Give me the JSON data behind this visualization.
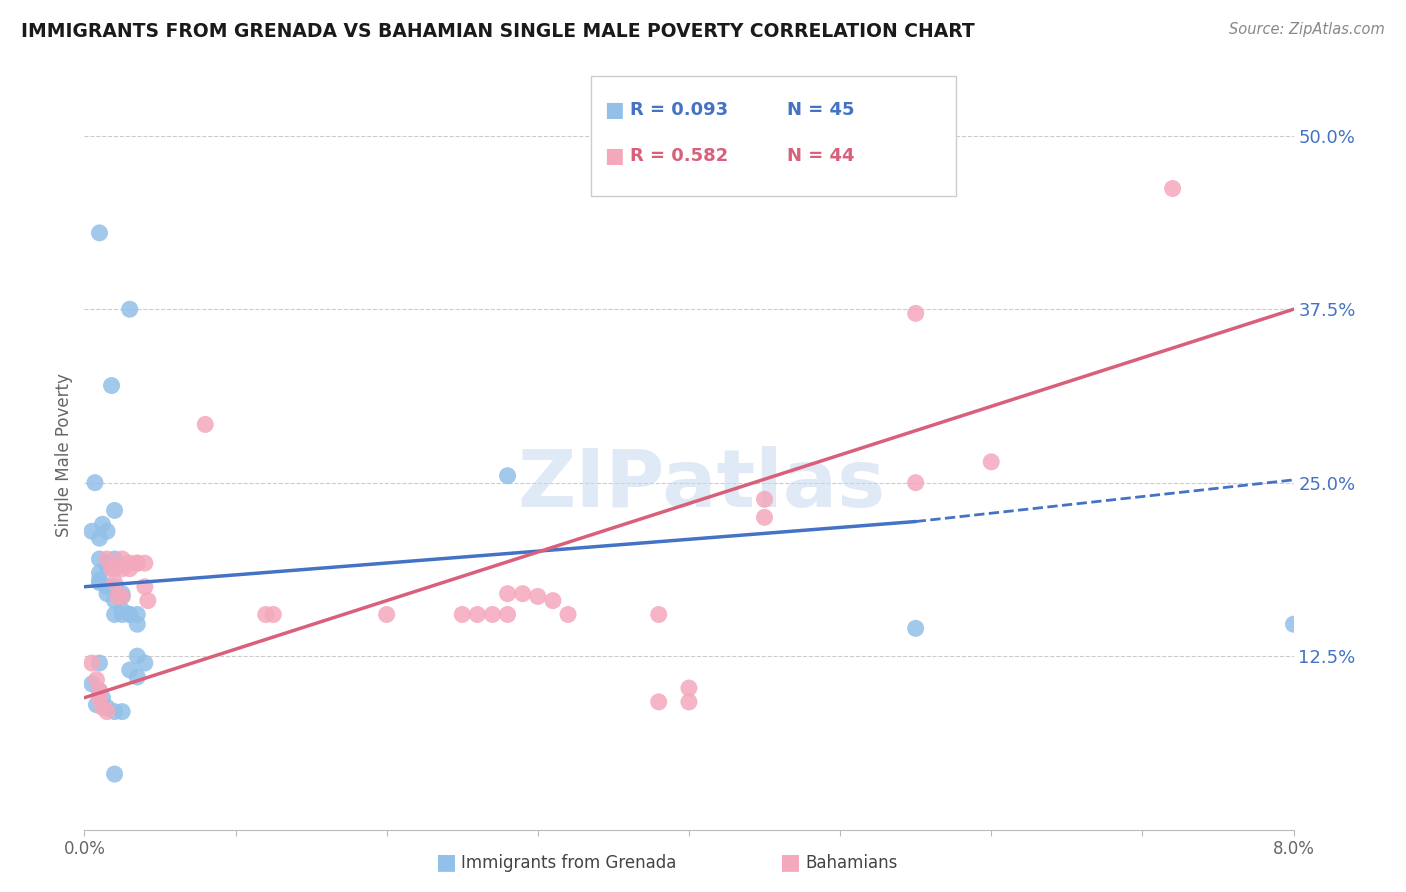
{
  "title": "IMMIGRANTS FROM GRENADA VS BAHAMIAN SINGLE MALE POVERTY CORRELATION CHART",
  "source": "Source: ZipAtlas.com",
  "ylabel": "Single Male Poverty",
  "xlim": [
    0.0,
    0.08
  ],
  "ylim": [
    0.0,
    0.54
  ],
  "ytick_vals": [
    0.125,
    0.25,
    0.375,
    0.5
  ],
  "ytick_labels": [
    "12.5%",
    "25.0%",
    "37.5%",
    "50.0%"
  ],
  "xtick_vals": [
    0.0,
    0.01,
    0.02,
    0.03,
    0.04,
    0.05,
    0.06,
    0.07,
    0.08
  ],
  "xtick_labels": [
    "0.0%",
    "",
    "",
    "",
    "",
    "",
    "",
    "",
    "8.0%"
  ],
  "legend_r1": "R = 0.093",
  "legend_n1": "N = 45",
  "legend_r2": "R = 0.582",
  "legend_n2": "N = 44",
  "blue_scatter_color": "#92C0E8",
  "pink_scatter_color": "#F4A8BC",
  "blue_line_color": "#4472C4",
  "pink_line_color": "#D9607A",
  "background_color": "#FFFFFF",
  "grid_color": "#CCCCCC",
  "watermark": "ZIPatlas",
  "blue_line_x0": 0.0,
  "blue_line_y0": 0.175,
  "blue_line_x1": 0.055,
  "blue_line_y1": 0.222,
  "blue_line_x2": 0.08,
  "blue_line_y2": 0.252,
  "pink_line_x0": 0.0,
  "pink_line_y0": 0.095,
  "pink_line_x1": 0.08,
  "pink_line_y1": 0.375,
  "blue_x": [
    0.001,
    0.003,
    0.0018,
    0.0007,
    0.0005,
    0.001,
    0.0015,
    0.0012,
    0.002,
    0.001,
    0.0015,
    0.001,
    0.001,
    0.001,
    0.0015,
    0.002,
    0.0015,
    0.0015,
    0.002,
    0.002,
    0.0025,
    0.0025,
    0.002,
    0.0025,
    0.0025,
    0.003,
    0.003,
    0.0035,
    0.0035,
    0.0035,
    0.004,
    0.003,
    0.0035,
    0.028,
    0.055,
    0.001,
    0.08,
    0.0005,
    0.001,
    0.0012,
    0.0008,
    0.0015,
    0.002,
    0.0025,
    0.002
  ],
  "blue_y": [
    0.43,
    0.375,
    0.32,
    0.25,
    0.215,
    0.21,
    0.215,
    0.22,
    0.23,
    0.195,
    0.19,
    0.185,
    0.18,
    0.178,
    0.192,
    0.195,
    0.175,
    0.17,
    0.175,
    0.165,
    0.17,
    0.168,
    0.155,
    0.158,
    0.155,
    0.155,
    0.155,
    0.155,
    0.148,
    0.125,
    0.12,
    0.115,
    0.11,
    0.255,
    0.145,
    0.12,
    0.148,
    0.105,
    0.1,
    0.095,
    0.09,
    0.088,
    0.085,
    0.085,
    0.04
  ],
  "pink_x": [
    0.0005,
    0.0008,
    0.001,
    0.001,
    0.0012,
    0.0015,
    0.0015,
    0.0018,
    0.002,
    0.002,
    0.0022,
    0.0025,
    0.0025,
    0.0025,
    0.003,
    0.003,
    0.0035,
    0.0035,
    0.004,
    0.004,
    0.0042,
    0.008,
    0.012,
    0.0125,
    0.02,
    0.025,
    0.026,
    0.027,
    0.028,
    0.028,
    0.029,
    0.03,
    0.031,
    0.032,
    0.038,
    0.038,
    0.04,
    0.04,
    0.045,
    0.045,
    0.055,
    0.055,
    0.06,
    0.072
  ],
  "pink_y": [
    0.12,
    0.108,
    0.1,
    0.095,
    0.088,
    0.085,
    0.195,
    0.188,
    0.188,
    0.178,
    0.168,
    0.168,
    0.195,
    0.188,
    0.192,
    0.188,
    0.192,
    0.192,
    0.192,
    0.175,
    0.165,
    0.292,
    0.155,
    0.155,
    0.155,
    0.155,
    0.155,
    0.155,
    0.17,
    0.155,
    0.17,
    0.168,
    0.165,
    0.155,
    0.155,
    0.092,
    0.102,
    0.092,
    0.225,
    0.238,
    0.372,
    0.25,
    0.265,
    0.462
  ]
}
